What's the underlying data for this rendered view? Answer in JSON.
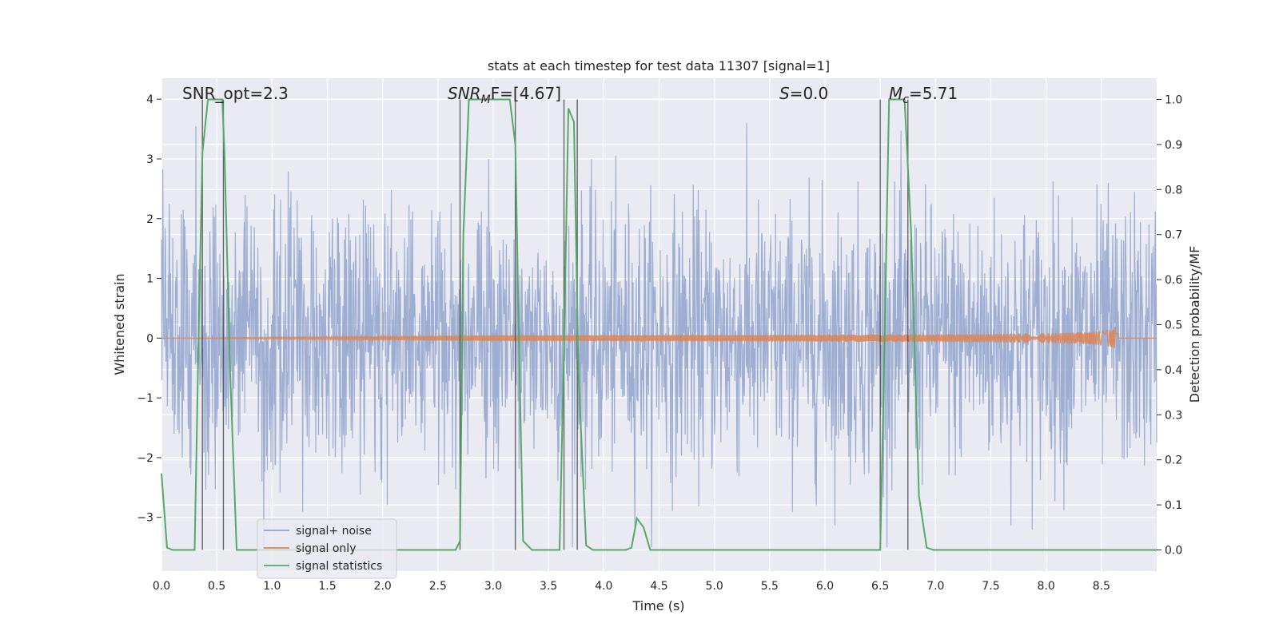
{
  "chart_data": {
    "type": "line",
    "title": "stats at each timestep for test data 11307 [signal=1]",
    "xlabel": "Time (s)",
    "ylabel_left": "Whitened strain",
    "ylabel_right": "Detection probability/MF",
    "xlim": [
      0.0,
      9.0
    ],
    "ylim_left": [
      -3.9,
      4.35
    ],
    "ylim_right": [
      -0.047,
      1.047
    ],
    "xticks": [
      "0.0",
      "0.5",
      "1.0",
      "1.5",
      "2.0",
      "2.5",
      "3.0",
      "3.5",
      "4.0",
      "4.5",
      "5.0",
      "5.5",
      "6.0",
      "6.5",
      "7.0",
      "7.5",
      "8.0",
      "8.5"
    ],
    "yticks_left": [
      "4",
      "3",
      "2",
      "1",
      "0",
      "−1",
      "−2",
      "−3"
    ],
    "yticks_left_values": [
      4,
      3,
      2,
      1,
      0,
      -1,
      -2,
      -3
    ],
    "yticks_right": [
      "1.0",
      "0.9",
      "0.8",
      "0.7",
      "0.6",
      "0.5",
      "0.4",
      "0.3",
      "0.2",
      "0.1",
      "0.0"
    ],
    "yticks_right_values": [
      1.0,
      0.9,
      0.8,
      0.7,
      0.6,
      0.5,
      0.4,
      0.3,
      0.2,
      0.1,
      0.0
    ],
    "grid": true,
    "legend_placement": "lower-left",
    "annotations": {
      "snr_opt": "SNR_opt=2.3",
      "snr_mf_main": "SNR",
      "snr_mf_sub": "M",
      "snr_mf_rest": "F=[4.67]",
      "s_main": "S",
      "s_rest": "=0.0",
      "mc_main": "M",
      "mc_sub": "c",
      "mc_rest": "=5.71"
    },
    "series": [
      {
        "name": "signal+ noise",
        "color": "#8fa3cc",
        "amplitude_envelope": [
          -3.5,
          3.6
        ]
      },
      {
        "name": "signal only",
        "color": "#dd8452",
        "chirp_end_time": 8.65,
        "peak_amplitude": 0.2
      },
      {
        "name": "signal statistics",
        "color": "#55a868",
        "axis": "right",
        "x": [
          0.0,
          0.05,
          0.1,
          0.3,
          0.33,
          0.37,
          0.42,
          0.46,
          0.55,
          0.57,
          0.62,
          0.68,
          0.8,
          2.66,
          2.7,
          2.73,
          2.78,
          3.15,
          3.2,
          3.23,
          3.27,
          3.35,
          3.6,
          3.64,
          3.68,
          3.73,
          3.77,
          3.84,
          3.9,
          4.0,
          4.2,
          4.25,
          4.3,
          4.36,
          4.42,
          6.0,
          6.5,
          6.53,
          6.58,
          6.72,
          6.78,
          6.85,
          6.92,
          6.98,
          9.0
        ],
        "y": [
          0.17,
          0.005,
          0.0,
          0.0,
          0.4,
          0.88,
          1.0,
          1.0,
          1.0,
          0.88,
          0.4,
          0.0,
          0.0,
          0.0,
          0.02,
          0.7,
          1.0,
          1.0,
          0.9,
          0.5,
          0.02,
          0.0,
          0.0,
          0.45,
          0.98,
          0.95,
          0.4,
          0.01,
          0.0,
          0.0,
          0.0,
          0.005,
          0.07,
          0.05,
          0.0,
          0.0,
          0.0,
          0.35,
          1.0,
          1.0,
          0.7,
          0.12,
          0.005,
          0.0,
          0.0
        ]
      }
    ],
    "vertical_lines": [
      0.37,
      0.56,
      2.7,
      3.2,
      3.64,
      3.76,
      6.5,
      6.75
    ]
  },
  "legend": {
    "items": [
      {
        "label": "signal+ noise",
        "color": "#8fa3cc"
      },
      {
        "label": "signal only",
        "color": "#dd8452"
      },
      {
        "label": "signal statistics",
        "color": "#55a868"
      }
    ]
  }
}
